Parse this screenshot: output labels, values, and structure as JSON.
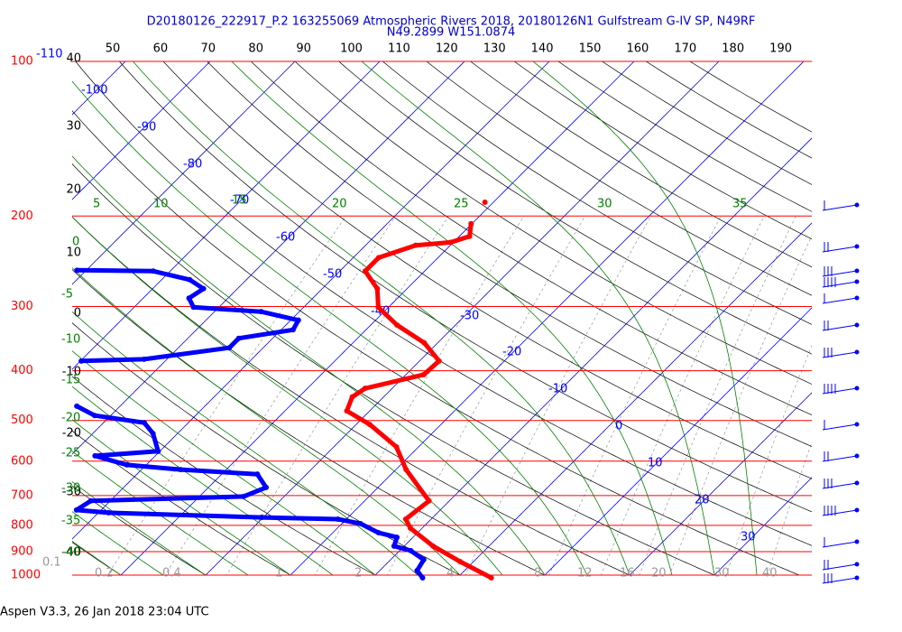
{
  "title": "D20180126_222917_P.2 163255069 Atmospheric Rivers 2018, 20180126N1 Gulfstream G-IV SP, N49RF",
  "subtitle": "N49.2899 W151.0874",
  "footer": "Aspen V3.3, 26 Jan 2018  23:04 UTC",
  "chart_data": {
    "type": "skew-t",
    "log_y": true,
    "ylim": [
      1000,
      100
    ],
    "yticks": [
      100,
      200,
      300,
      400,
      500,
      600,
      700,
      800,
      900,
      1000
    ],
    "isobar_color": "#ff0000",
    "isotherms": {
      "color": "#0000ff",
      "values": [
        -110,
        -100,
        -90,
        -80,
        -70,
        -60,
        -50,
        -40,
        -30,
        -20,
        -10,
        0,
        10,
        20,
        30
      ]
    },
    "dry_adiabats": {
      "color": "#000000",
      "left": [
        40,
        30,
        20,
        10,
        0,
        -10,
        -20,
        -30,
        -40
      ],
      "top": [
        50,
        60,
        70,
        80,
        90,
        100,
        110,
        120,
        130,
        140,
        150,
        160,
        170,
        180,
        190
      ]
    },
    "moist_adiabats": {
      "color": "#008000",
      "top": [
        5,
        10,
        15,
        20,
        25,
        30,
        35
      ],
      "left": [
        0,
        -5,
        -10,
        -15,
        -20,
        -25,
        -30,
        -35,
        -40
      ]
    },
    "mixing_ratios": {
      "color": "#999999",
      "values": [
        0.1,
        0.2,
        0.4,
        1,
        2,
        4,
        8,
        12,
        16,
        20,
        30,
        40
      ]
    },
    "series": [
      {
        "color": "#ff0000",
        "pressure": [
          1012,
          941,
          878,
          810,
          778,
          717,
          623,
          563,
          509,
          479,
          450,
          433,
          407,
          383,
          353,
          326,
          301,
          277,
          256,
          241,
          228,
          225,
          219,
          207,
          null,
          188
        ],
        "values": [
          4.0,
          -1.6,
          -6.6,
          -11.4,
          -13.0,
          -12.4,
          -18.8,
          -22.6,
          -28.4,
          -32.7,
          -33.7,
          -33.2,
          -27.9,
          -27.7,
          -31.6,
          -36.9,
          -41.2,
          -43.5,
          -47.0,
          -47.0,
          -44.1,
          -40.3,
          -38.8,
          -40.1,
          null,
          -41.0
        ]
      },
      {
        "color": "#0000ff",
        "pressure": [
          1012,
          980,
          933,
          896,
          878,
          844,
          827,
          794,
          778,
          772,
          756,
          747,
          717,
          703,
          675,
          636,
          623,
          610,
          586,
          574,
          530,
          505,
          489,
          469,
          null,
          383,
          380,
          361,
          346,
          333,
          319,
          307,
          301,
          289,
          277,
          266,
          256,
          255
        ],
        "values": [
          -4.1,
          -5.6,
          -6.1,
          -8.7,
          -11.2,
          -11.9,
          -14.6,
          -17.8,
          -21.0,
          -30.2,
          -48.8,
          -52.9,
          -52.3,
          -34.8,
          -33.2,
          -35.8,
          -45.4,
          -52.3,
          -57.1,
          -50.2,
          -52.9,
          -55.2,
          -61.9,
          -65.1,
          null,
          -69.9,
          -62.7,
          -54.0,
          -54.0,
          -48.6,
          -49.1,
          -54.5,
          -63.0,
          -64.6,
          -64.0,
          -66.7,
          -72.0,
          -81.1
        ]
      }
    ]
  }
}
